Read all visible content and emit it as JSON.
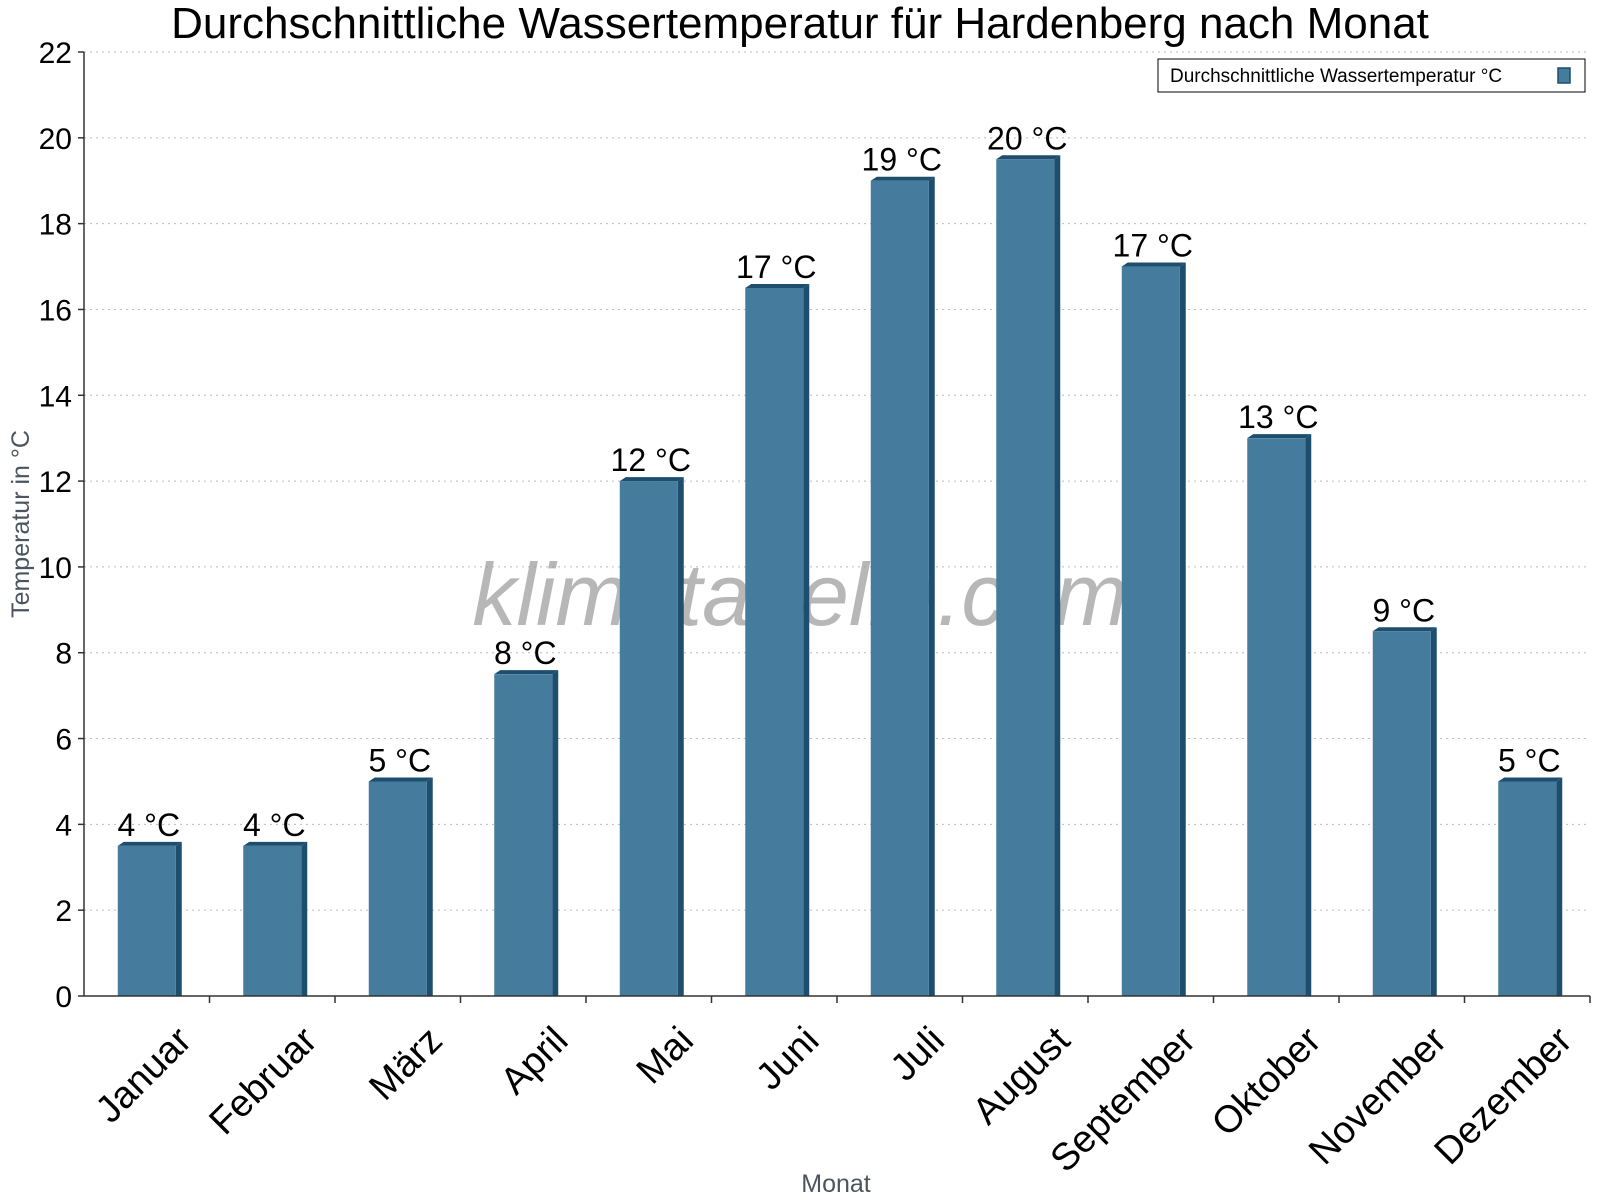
{
  "chart_data": {
    "type": "bar",
    "title": "Durchschnittliche Wassertemperatur für Hardenberg nach Monat",
    "xlabel": "Monat",
    "ylabel": "Temperatur in °C",
    "ylim": [
      0,
      22
    ],
    "yticks": [
      0,
      2,
      4,
      6,
      8,
      10,
      12,
      14,
      16,
      18,
      20,
      22
    ],
    "grid": true,
    "legend_position": "top-right",
    "categories": [
      "Januar",
      "Februar",
      "März",
      "April",
      "Mai",
      "Juni",
      "Juli",
      "August",
      "September",
      "Oktober",
      "November",
      "Dezember"
    ],
    "series": [
      {
        "name": "Durchschnittliche Wassertemperatur °C",
        "values": [
          3.5,
          3.5,
          5.0,
          7.5,
          12.0,
          16.5,
          19.0,
          19.5,
          17.0,
          13.0,
          8.5,
          5.0
        ],
        "labels": [
          "4 °C",
          "4 °C",
          "5 °C",
          "8 °C",
          "12 °C",
          "17 °C",
          "19 °C",
          "20 °C",
          "17 °C",
          "13 °C",
          "9 °C",
          "5 °C"
        ],
        "color": "#457b9d",
        "edge_color": "#1d4e6e"
      }
    ],
    "watermark": "klimatabelle.com"
  }
}
